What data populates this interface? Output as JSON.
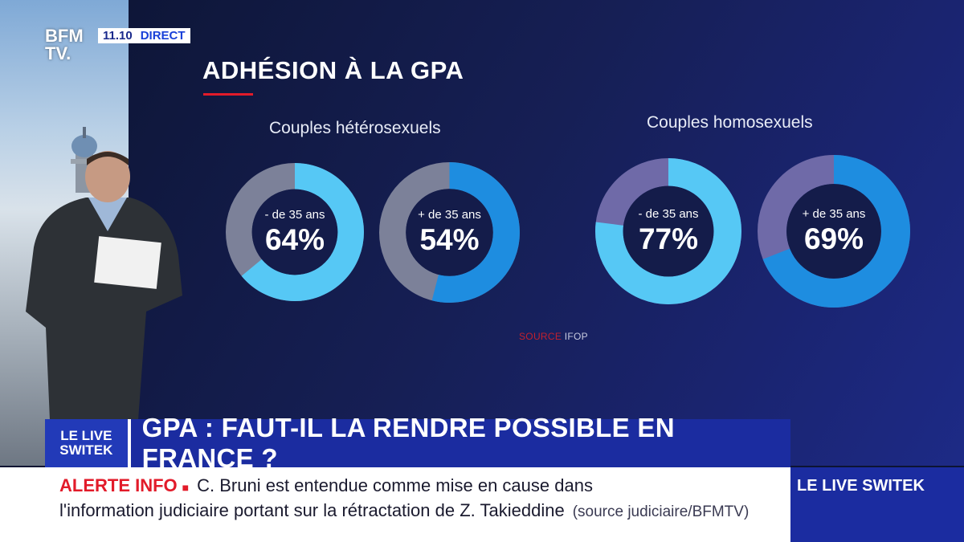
{
  "channel": {
    "logo_line1": "BFM",
    "logo_line2": "TV.",
    "time": "11.10",
    "live_label": "DIRECT"
  },
  "infographic": {
    "title": "ADHÉSION À LA GPA",
    "groups": [
      {
        "label": "Couples hétérosexuels"
      },
      {
        "label": "Couples homosexuels"
      }
    ],
    "source_key": "SOURCE",
    "source_value": "IFOP",
    "colors": {
      "light_blue": "#56c8f5",
      "blue": "#1e8de0",
      "grey": "#7c8199",
      "purple_grey": "#6f6aa8"
    }
  },
  "chart_data": {
    "type": "pie",
    "title": "ADHÉSION À LA GPA",
    "series": [
      {
        "name": "Couples hétérosexuels - de 35 ans",
        "age_label": "- de 35 ans",
        "value": 64,
        "value_label": "64%"
      },
      {
        "name": "Couples hétérosexuels + de 35 ans",
        "age_label": "+ de 35 ans",
        "value": 54,
        "value_label": "54%"
      },
      {
        "name": "Couples homosexuels - de 35 ans",
        "age_label": "- de 35 ans",
        "value": 77,
        "value_label": "77%"
      },
      {
        "name": "Couples homosexuels + de 35 ans",
        "age_label": "+ de 35 ans",
        "value": 69,
        "value_label": "69%"
      }
    ]
  },
  "banner": {
    "tag_line1": "LE LIVE",
    "tag_line2": "SWITEK",
    "headline": "GPA : FAUT-IL LA RENDRE POSSIBLE EN FRANCE ?"
  },
  "alert": {
    "label": "ALERTE INFO",
    "bullet": "■",
    "line1": "C. Bruni est entendue comme mise en cause dans",
    "line2": "l'information judiciaire portant sur la rétractation de Z. Takieddine",
    "source": "(source judiciaire/BFMTV)"
  },
  "side_label": "LE LIVE SWITEK"
}
